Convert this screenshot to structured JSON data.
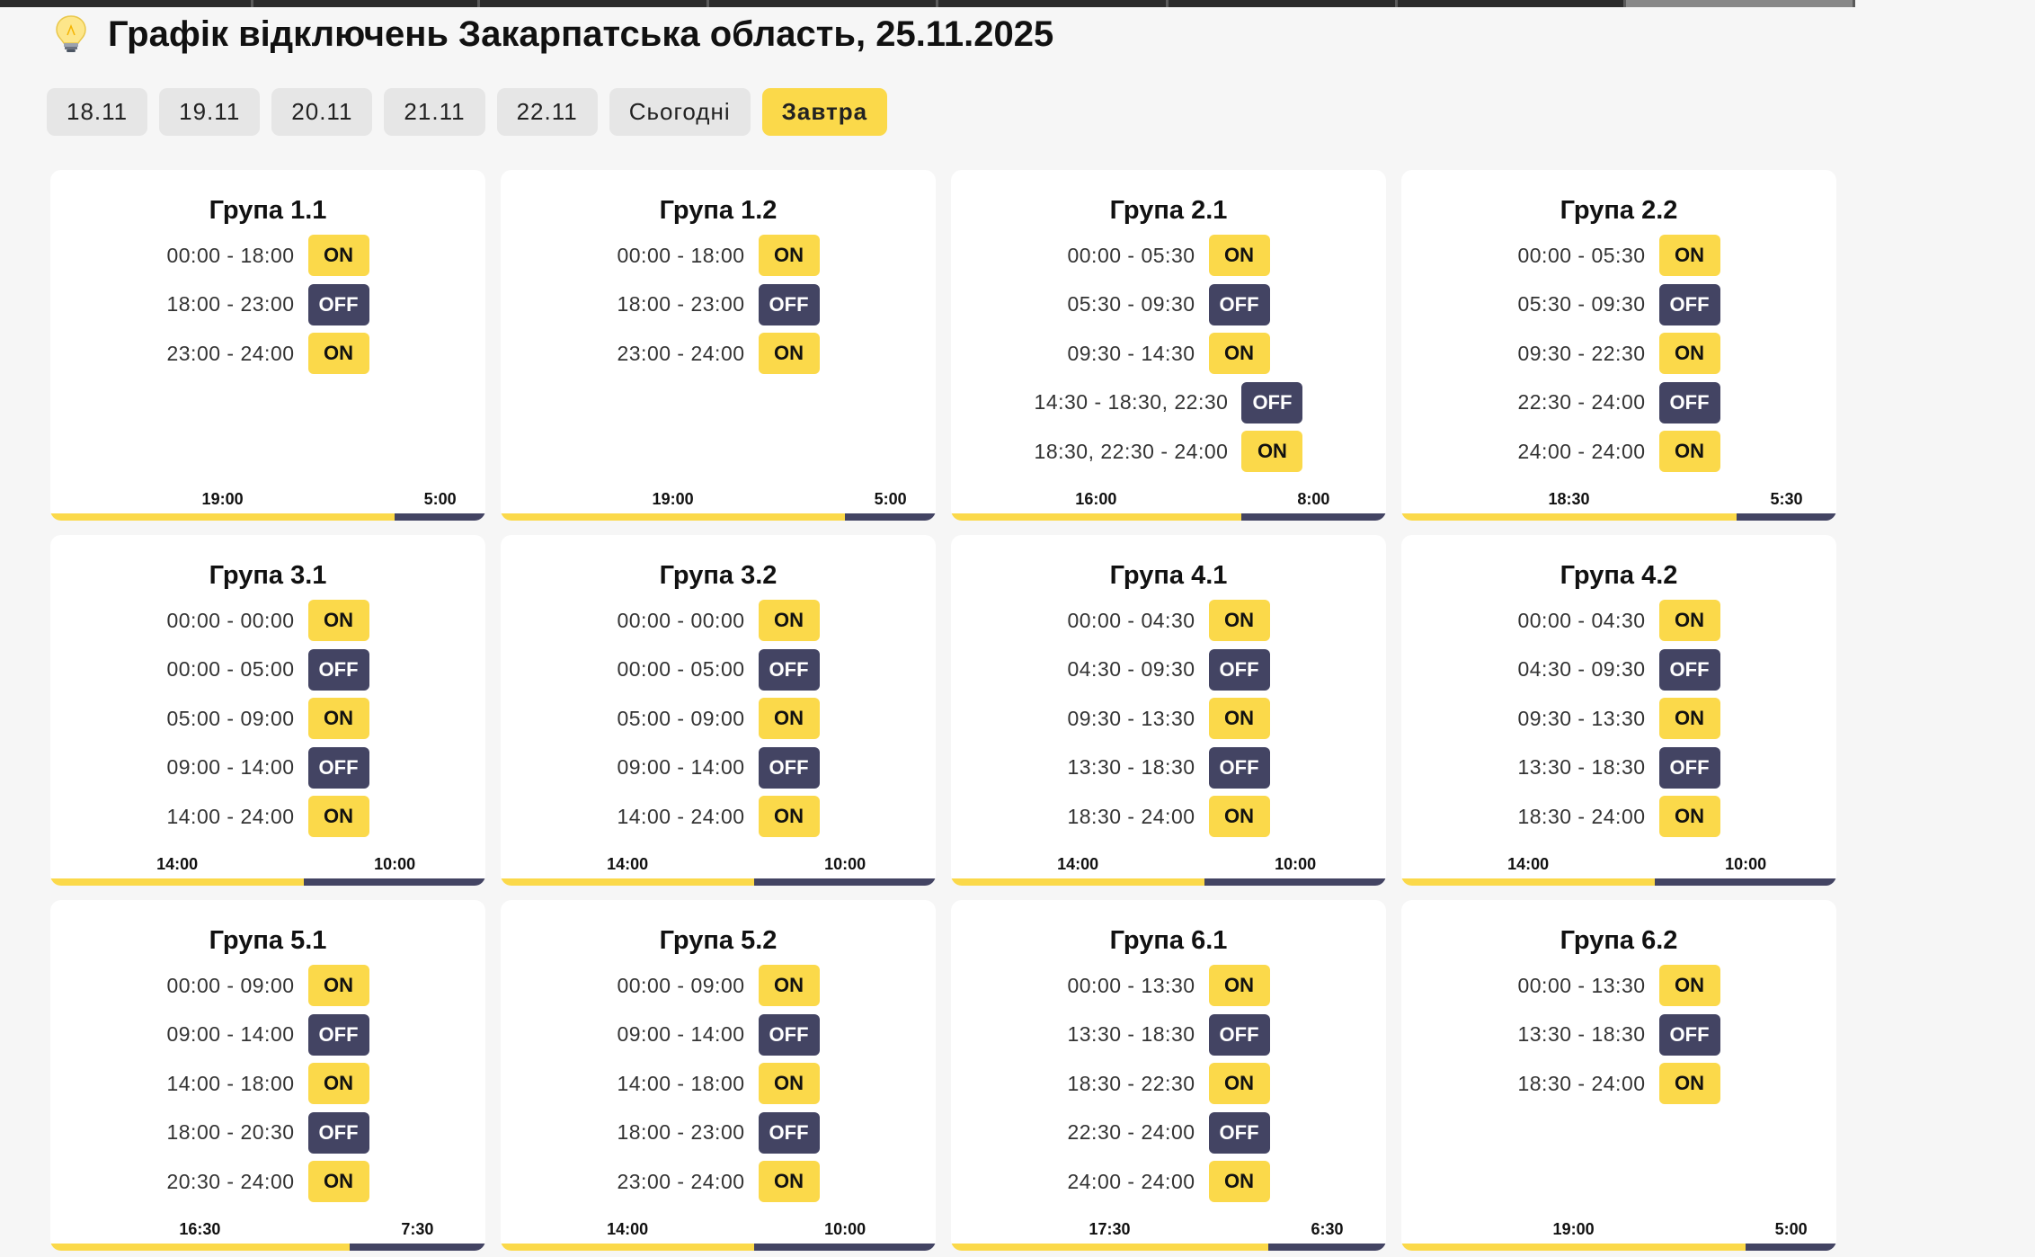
{
  "header": {
    "title": "Графік відключень Закарпатська область, 25.11.2025",
    "icon": "lightbulb-icon"
  },
  "tabs": [
    {
      "label": "18.11",
      "active": false
    },
    {
      "label": "19.11",
      "active": false
    },
    {
      "label": "20.11",
      "active": false
    },
    {
      "label": "21.11",
      "active": false
    },
    {
      "label": "22.11",
      "active": false
    },
    {
      "label": "Сьогодні",
      "active": false
    },
    {
      "label": "Завтра",
      "active": true
    }
  ],
  "colors": {
    "on": "#fbd94a",
    "off": "#434463",
    "background": "#f6f6f6"
  },
  "groups": [
    {
      "title": "Група 1.1",
      "on_total": "19:00",
      "off_total": "5:00",
      "on_fraction": 0.7917,
      "rows": [
        {
          "time": "00:00 - 18:00",
          "status": "ON"
        },
        {
          "time": "18:00 - 23:00",
          "status": "OFF"
        },
        {
          "time": "23:00 - 24:00",
          "status": "ON"
        }
      ]
    },
    {
      "title": "Група 1.2",
      "on_total": "19:00",
      "off_total": "5:00",
      "on_fraction": 0.7917,
      "rows": [
        {
          "time": "00:00 - 18:00",
          "status": "ON"
        },
        {
          "time": "18:00 - 23:00",
          "status": "OFF"
        },
        {
          "time": "23:00 - 24:00",
          "status": "ON"
        }
      ]
    },
    {
      "title": "Група 2.1",
      "on_total": "16:00",
      "off_total": "8:00",
      "on_fraction": 0.6667,
      "rows": [
        {
          "time": "00:00 - 05:30",
          "status": "ON"
        },
        {
          "time": "05:30 - 09:30",
          "status": "OFF"
        },
        {
          "time": "09:30 - 14:30",
          "status": "ON"
        },
        {
          "time": "14:30 - 18:30, 22:30",
          "status": "OFF"
        },
        {
          "time": "18:30, 22:30 - 24:00",
          "status": "ON"
        }
      ]
    },
    {
      "title": "Група 2.2",
      "on_total": "18:30",
      "off_total": "5:30",
      "on_fraction": 0.7708,
      "rows": [
        {
          "time": "00:00 - 05:30",
          "status": "ON"
        },
        {
          "time": "05:30 - 09:30",
          "status": "OFF"
        },
        {
          "time": "09:30 - 22:30",
          "status": "ON"
        },
        {
          "time": "22:30 - 24:00",
          "status": "OFF"
        },
        {
          "time": "24:00 - 24:00",
          "status": "ON"
        }
      ]
    },
    {
      "title": "Група 3.1",
      "on_total": "14:00",
      "off_total": "10:00",
      "on_fraction": 0.5833,
      "rows": [
        {
          "time": "00:00 - 00:00",
          "status": "ON"
        },
        {
          "time": "00:00 - 05:00",
          "status": "OFF"
        },
        {
          "time": "05:00 - 09:00",
          "status": "ON"
        },
        {
          "time": "09:00 - 14:00",
          "status": "OFF"
        },
        {
          "time": "14:00 - 24:00",
          "status": "ON"
        }
      ]
    },
    {
      "title": "Група 3.2",
      "on_total": "14:00",
      "off_total": "10:00",
      "on_fraction": 0.5833,
      "rows": [
        {
          "time": "00:00 - 00:00",
          "status": "ON"
        },
        {
          "time": "00:00 - 05:00",
          "status": "OFF"
        },
        {
          "time": "05:00 - 09:00",
          "status": "ON"
        },
        {
          "time": "09:00 - 14:00",
          "status": "OFF"
        },
        {
          "time": "14:00 - 24:00",
          "status": "ON"
        }
      ]
    },
    {
      "title": "Група 4.1",
      "on_total": "14:00",
      "off_total": "10:00",
      "on_fraction": 0.5833,
      "rows": [
        {
          "time": "00:00 - 04:30",
          "status": "ON"
        },
        {
          "time": "04:30 - 09:30",
          "status": "OFF"
        },
        {
          "time": "09:30 - 13:30",
          "status": "ON"
        },
        {
          "time": "13:30 - 18:30",
          "status": "OFF"
        },
        {
          "time": "18:30 - 24:00",
          "status": "ON"
        }
      ]
    },
    {
      "title": "Група 4.2",
      "on_total": "14:00",
      "off_total": "10:00",
      "on_fraction": 0.5833,
      "rows": [
        {
          "time": "00:00 - 04:30",
          "status": "ON"
        },
        {
          "time": "04:30 - 09:30",
          "status": "OFF"
        },
        {
          "time": "09:30 - 13:30",
          "status": "ON"
        },
        {
          "time": "13:30 - 18:30",
          "status": "OFF"
        },
        {
          "time": "18:30 - 24:00",
          "status": "ON"
        }
      ]
    },
    {
      "title": "Група 5.1",
      "on_total": "16:30",
      "off_total": "7:30",
      "on_fraction": 0.6875,
      "rows": [
        {
          "time": "00:00 - 09:00",
          "status": "ON"
        },
        {
          "time": "09:00 - 14:00",
          "status": "OFF"
        },
        {
          "time": "14:00 - 18:00",
          "status": "ON"
        },
        {
          "time": "18:00 - 20:30",
          "status": "OFF"
        },
        {
          "time": "20:30 - 24:00",
          "status": "ON"
        }
      ]
    },
    {
      "title": "Група 5.2",
      "on_total": "14:00",
      "off_total": "10:00",
      "on_fraction": 0.5833,
      "rows": [
        {
          "time": "00:00 - 09:00",
          "status": "ON"
        },
        {
          "time": "09:00 - 14:00",
          "status": "OFF"
        },
        {
          "time": "14:00 - 18:00",
          "status": "ON"
        },
        {
          "time": "18:00 - 23:00",
          "status": "OFF"
        },
        {
          "time": "23:00 - 24:00",
          "status": "ON"
        }
      ]
    },
    {
      "title": "Група 6.1",
      "on_total": "17:30",
      "off_total": "6:30",
      "on_fraction": 0.7292,
      "rows": [
        {
          "time": "00:00 - 13:30",
          "status": "ON"
        },
        {
          "time": "13:30 - 18:30",
          "status": "OFF"
        },
        {
          "time": "18:30 - 22:30",
          "status": "ON"
        },
        {
          "time": "22:30 - 24:00",
          "status": "OFF"
        },
        {
          "time": "24:00 - 24:00",
          "status": "ON"
        }
      ]
    },
    {
      "title": "Група 6.2",
      "on_total": "19:00",
      "off_total": "5:00",
      "on_fraction": 0.7917,
      "rows": [
        {
          "time": "00:00 - 13:30",
          "status": "ON"
        },
        {
          "time": "13:30 - 18:30",
          "status": "OFF"
        },
        {
          "time": "18:30 - 24:00",
          "status": "ON"
        }
      ]
    }
  ]
}
